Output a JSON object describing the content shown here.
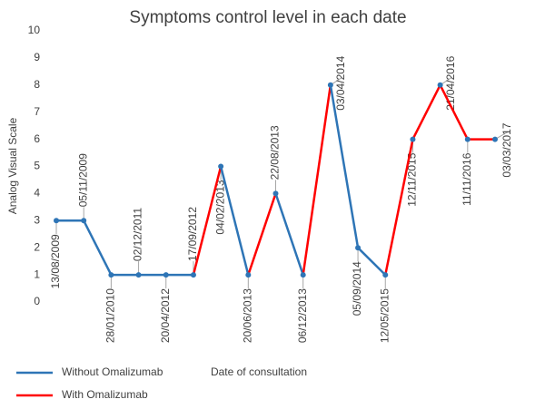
{
  "chart_data": {
    "type": "line",
    "title": "Symptoms control level in each date",
    "y_label": "Analog Visual Scale",
    "x_label": "Date of consultation",
    "categories": [
      "13/08/2009",
      "05/11/2009",
      "28/01/2010",
      "02/12/2011",
      "20/04/2012",
      "17/09/2012",
      "04/02/2013",
      "20/06/2013",
      "22/08/2013",
      "06/12/2013",
      "03/04/2014",
      "05/09/2014",
      "12/05/2015",
      "12/11/2015",
      "21/04/2016",
      "11/11/2016",
      "03/03/2017"
    ],
    "values": [
      3,
      3,
      1,
      1,
      1,
      1,
      5,
      1,
      4,
      1,
      8,
      2,
      1,
      6,
      8,
      6,
      6
    ],
    "series": [
      {
        "name": "Without Omalizumab",
        "color": "#2e75b6"
      },
      {
        "name": "With Omalizumab",
        "color": "#ff0000"
      }
    ],
    "segment_colors": [
      "#2e75b6",
      "#2e75b6",
      "#2e75b6",
      "#2e75b6",
      "#2e75b6",
      "#ff0000",
      "#2e75b6",
      "#ff0000",
      "#2e75b6",
      "#ff0000",
      "#2e75b6",
      "#2e75b6",
      "#ff0000",
      "#ff0000",
      "#ff0000",
      "#ff0000"
    ],
    "marker_color": "#2e75b6",
    "ylim": [
      0,
      10
    ],
    "yticks": [
      0,
      1,
      2,
      3,
      4,
      5,
      6,
      7,
      8,
      9,
      10
    ],
    "grid": false
  }
}
